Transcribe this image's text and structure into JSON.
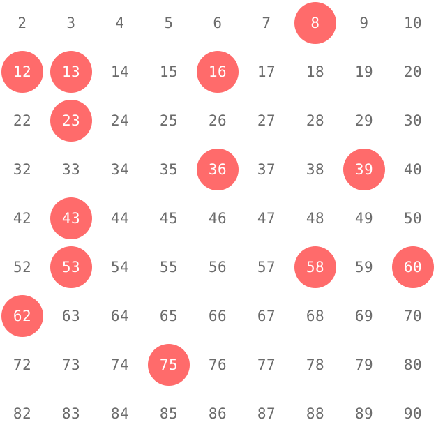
{
  "board": {
    "marked_color": "#ff6b6b",
    "number_color": "#6b6b6b",
    "rows": [
      [
        {
          "n": "2",
          "marked": false
        },
        {
          "n": "3",
          "marked": false
        },
        {
          "n": "4",
          "marked": false
        },
        {
          "n": "5",
          "marked": false
        },
        {
          "n": "6",
          "marked": false
        },
        {
          "n": "7",
          "marked": false
        },
        {
          "n": "8",
          "marked": true
        },
        {
          "n": "9",
          "marked": false
        },
        {
          "n": "10",
          "marked": false
        }
      ],
      [
        {
          "n": "12",
          "marked": true
        },
        {
          "n": "13",
          "marked": true
        },
        {
          "n": "14",
          "marked": false
        },
        {
          "n": "15",
          "marked": false
        },
        {
          "n": "16",
          "marked": true
        },
        {
          "n": "17",
          "marked": false
        },
        {
          "n": "18",
          "marked": false
        },
        {
          "n": "19",
          "marked": false
        },
        {
          "n": "20",
          "marked": false
        }
      ],
      [
        {
          "n": "22",
          "marked": false
        },
        {
          "n": "23",
          "marked": true
        },
        {
          "n": "24",
          "marked": false
        },
        {
          "n": "25",
          "marked": false
        },
        {
          "n": "26",
          "marked": false
        },
        {
          "n": "27",
          "marked": false
        },
        {
          "n": "28",
          "marked": false
        },
        {
          "n": "29",
          "marked": false
        },
        {
          "n": "30",
          "marked": false
        }
      ],
      [
        {
          "n": "32",
          "marked": false
        },
        {
          "n": "33",
          "marked": false
        },
        {
          "n": "34",
          "marked": false
        },
        {
          "n": "35",
          "marked": false
        },
        {
          "n": "36",
          "marked": true
        },
        {
          "n": "37",
          "marked": false
        },
        {
          "n": "38",
          "marked": false
        },
        {
          "n": "39",
          "marked": true
        },
        {
          "n": "40",
          "marked": false
        }
      ],
      [
        {
          "n": "42",
          "marked": false
        },
        {
          "n": "43",
          "marked": true
        },
        {
          "n": "44",
          "marked": false
        },
        {
          "n": "45",
          "marked": false
        },
        {
          "n": "46",
          "marked": false
        },
        {
          "n": "47",
          "marked": false
        },
        {
          "n": "48",
          "marked": false
        },
        {
          "n": "49",
          "marked": false
        },
        {
          "n": "50",
          "marked": false
        }
      ],
      [
        {
          "n": "52",
          "marked": false
        },
        {
          "n": "53",
          "marked": true
        },
        {
          "n": "54",
          "marked": false
        },
        {
          "n": "55",
          "marked": false
        },
        {
          "n": "56",
          "marked": false
        },
        {
          "n": "57",
          "marked": false
        },
        {
          "n": "58",
          "marked": true
        },
        {
          "n": "59",
          "marked": false
        },
        {
          "n": "60",
          "marked": true
        }
      ],
      [
        {
          "n": "62",
          "marked": true
        },
        {
          "n": "63",
          "marked": false
        },
        {
          "n": "64",
          "marked": false
        },
        {
          "n": "65",
          "marked": false
        },
        {
          "n": "66",
          "marked": false
        },
        {
          "n": "67",
          "marked": false
        },
        {
          "n": "68",
          "marked": false
        },
        {
          "n": "69",
          "marked": false
        },
        {
          "n": "70",
          "marked": false
        }
      ],
      [
        {
          "n": "72",
          "marked": false
        },
        {
          "n": "73",
          "marked": false
        },
        {
          "n": "74",
          "marked": false
        },
        {
          "n": "75",
          "marked": true
        },
        {
          "n": "76",
          "marked": false
        },
        {
          "n": "77",
          "marked": false
        },
        {
          "n": "78",
          "marked": false
        },
        {
          "n": "79",
          "marked": false
        },
        {
          "n": "80",
          "marked": false
        }
      ],
      [
        {
          "n": "82",
          "marked": false
        },
        {
          "n": "83",
          "marked": false
        },
        {
          "n": "84",
          "marked": false
        },
        {
          "n": "85",
          "marked": false
        },
        {
          "n": "86",
          "marked": false
        },
        {
          "n": "87",
          "marked": false
        },
        {
          "n": "88",
          "marked": false
        },
        {
          "n": "89",
          "marked": false
        },
        {
          "n": "90",
          "marked": false
        }
      ]
    ]
  }
}
